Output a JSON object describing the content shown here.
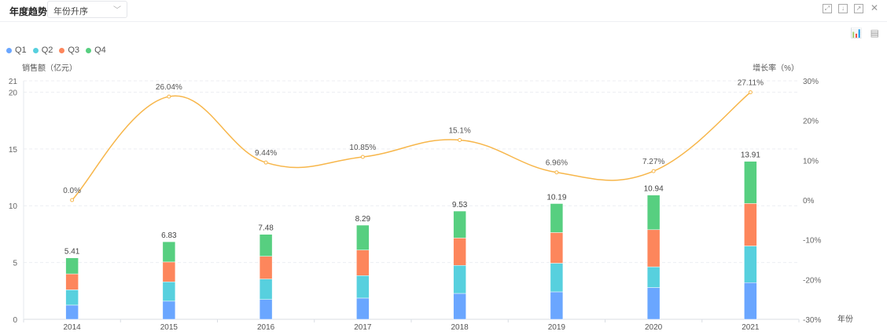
{
  "header": {
    "title": "年度趋势",
    "sort_select": "年份升序"
  },
  "toolbar": {
    "icons": [
      "fullscreen-icon",
      "download-icon",
      "open-external-icon",
      "close-icon"
    ],
    "view_icons": [
      "bar-chart-icon",
      "table-doc-icon"
    ]
  },
  "colors": {
    "Q1": "#6aa6ff",
    "Q2": "#57d0de",
    "Q3": "#fd865c",
    "Q4": "#57cf80",
    "line": "#f7b64a"
  },
  "chart_data": {
    "type": "bar",
    "stacked": true,
    "categories": [
      "2014",
      "2015",
      "2016",
      "2017",
      "2018",
      "2019",
      "2020",
      "2021"
    ],
    "series": [
      {
        "name": "Q1",
        "values": [
          1.25,
          1.6,
          1.75,
          1.87,
          2.28,
          2.42,
          2.8,
          3.23
        ]
      },
      {
        "name": "Q2",
        "values": [
          1.35,
          1.7,
          1.8,
          1.98,
          2.47,
          2.52,
          1.82,
          3.23
        ]
      },
      {
        "name": "Q3",
        "values": [
          1.4,
          1.75,
          2.0,
          2.25,
          2.41,
          2.7,
          3.27,
          3.74
        ]
      },
      {
        "name": "Q4",
        "values": [
          1.41,
          1.78,
          1.93,
          2.19,
          2.37,
          2.55,
          3.05,
          3.71
        ]
      }
    ],
    "totals": [
      "5.41",
      "6.83",
      "7.48",
      "8.29",
      "9.53",
      "10.19",
      "10.94",
      "13.91"
    ],
    "growth": {
      "name": "增长率",
      "type": "line",
      "values": [
        0.0,
        26.04,
        9.44,
        10.85,
        15.1,
        6.96,
        7.27,
        27.11
      ],
      "labels": [
        "0.0%",
        "26.04%",
        "9.44%",
        "10.85%",
        "15.1%",
        "6.96%",
        "7.27%",
        "27.11%"
      ]
    },
    "ylabel": "销售额（亿元）",
    "y2label": "增长率（%）",
    "xlabel": "年份",
    "ylim": [
      0,
      21
    ],
    "yticks": [
      "0",
      "5",
      "10",
      "15",
      "20",
      "21"
    ],
    "y2lim": [
      -30,
      30
    ],
    "y2ticks": [
      "-30%",
      "-20%",
      "-10%",
      "0%",
      "10%",
      "20%",
      "30%"
    ],
    "legend": "top-left",
    "grid": true
  }
}
